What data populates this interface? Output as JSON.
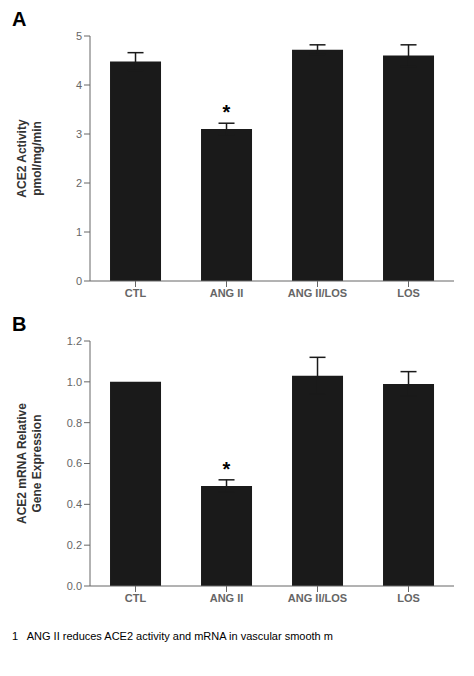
{
  "chart_data": [
    {
      "type": "bar",
      "panel_label": "A",
      "categories": [
        "CTL",
        "ANG II",
        "ANG II/LOS",
        "LOS"
      ],
      "values": [
        4.48,
        3.1,
        4.72,
        4.6
      ],
      "errors": [
        0.18,
        0.12,
        0.1,
        0.22
      ],
      "ylabel": "ACE2 Activity\npmol/mg/min",
      "ylim": [
        0,
        5
      ],
      "yticks": [
        0,
        1,
        2,
        3,
        4,
        5
      ],
      "color": "#1a1a1a",
      "grid": false,
      "annotations": [
        {
          "text": "*",
          "category": "ANG II"
        }
      ]
    },
    {
      "type": "bar",
      "panel_label": "B",
      "categories": [
        "CTL",
        "ANG II",
        "ANG II/LOS",
        "LOS"
      ],
      "values": [
        1.0,
        0.49,
        1.03,
        0.99
      ],
      "errors": [
        0.0,
        0.03,
        0.09,
        0.06
      ],
      "ylabel": "ACE2 mRNA Relative\nGene Expression",
      "ylim": [
        0,
        1.2
      ],
      "yticks": [
        {
          "value": 0,
          "label": "0.0"
        },
        0.2,
        0.4,
        0.6,
        0.8,
        {
          "value": 1,
          "label": "1.0"
        },
        1.2
      ],
      "color": "#1a1a1a",
      "grid": false,
      "annotations": [
        {
          "text": "*",
          "category": "ANG II"
        }
      ]
    }
  ],
  "caption": "1   ANG II reduces ACE2 activity and mRNA in vascular smooth m"
}
